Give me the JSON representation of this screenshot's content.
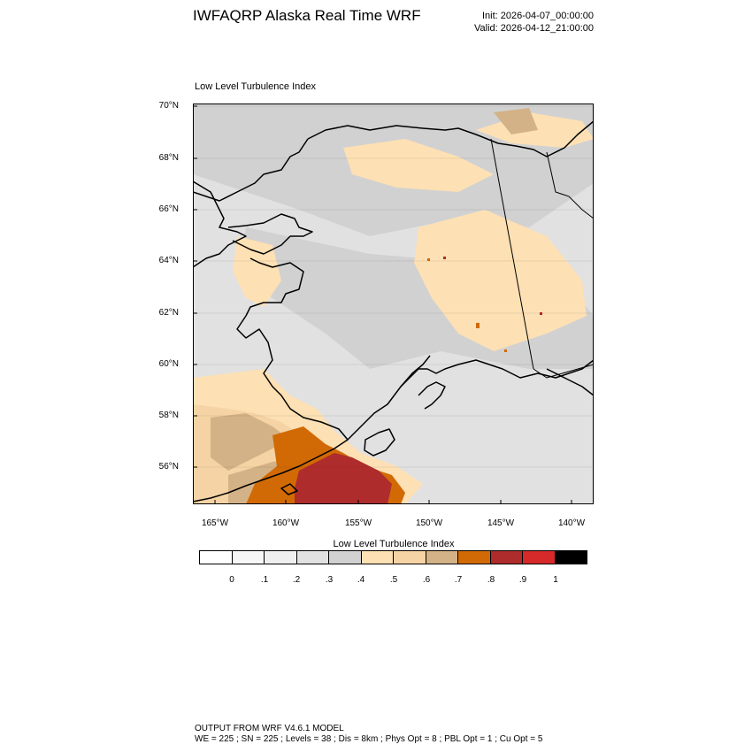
{
  "header": {
    "title": "IWFAQRP Alaska Real Time WRF",
    "init": "Init: 2026-04-07_00:00:00",
    "valid": "Valid: 2026-04-12_21:00:00"
  },
  "map": {
    "field_label": "Low Level Turbulence Index",
    "lat_labels": [
      "70°N",
      "68°N",
      "66°N",
      "64°N",
      "62°N",
      "60°N",
      "58°N",
      "56°N"
    ],
    "lon_labels": [
      "165°W",
      "160°W",
      "155°W",
      "150°W",
      "145°W",
      "140°W"
    ],
    "land_color": "#b8b8b8"
  },
  "colorbar": {
    "title": "Low Level Turbulence Index",
    "colors": [
      "#ffffff",
      "#f7f7f7",
      "#efefef",
      "#e1e1e1",
      "#d1d1d1",
      "#fde0b4",
      "#f5d3a4",
      "#d4b287",
      "#d16a04",
      "#ae2c2c",
      "#d62a2a",
      "#000000"
    ],
    "ticks": [
      "0",
      ".1",
      ".2",
      ".3",
      ".4",
      ".5",
      ".6",
      ".7",
      ".8",
      ".9",
      "1"
    ]
  },
  "footer": {
    "line1": "OUTPUT FROM WRF V4.6.1 MODEL",
    "line2": "WE = 225 ; SN = 225 ; Levels = 38 ; Dis = 8km ; Phys Opt = 8 ; PBL Opt = 1 ; Cu Opt = 5"
  }
}
